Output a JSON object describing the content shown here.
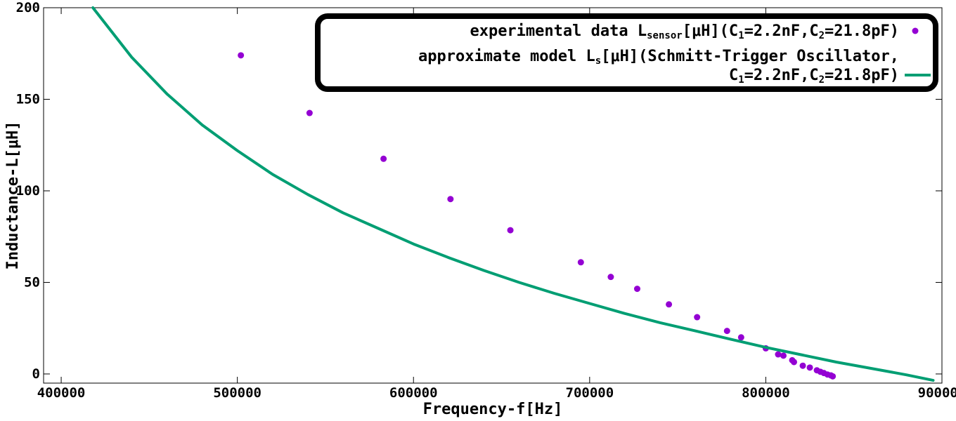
{
  "chart_data": {
    "type": "scatter",
    "xlabel": "Frequency-f[Hz]",
    "ylabel": "Inductance-L[μH]",
    "xlim": [
      390000,
      900000
    ],
    "ylim": [
      -5,
      200
    ],
    "x_ticks": [
      {
        "value": 400000,
        "label": "400000"
      },
      {
        "value": 500000,
        "label": "500000"
      },
      {
        "value": 600000,
        "label": "600000"
      },
      {
        "value": 700000,
        "label": "700000"
      },
      {
        "value": 800000,
        "label": "800000"
      },
      {
        "value": 900000,
        "label": "900000"
      }
    ],
    "y_ticks": [
      {
        "value": 0,
        "label": "0"
      },
      {
        "value": 50,
        "label": "50"
      },
      {
        "value": 100,
        "label": "100"
      },
      {
        "value": 150,
        "label": "150"
      },
      {
        "value": 200,
        "label": "200"
      }
    ],
    "legend_position": "top-right",
    "legend_border": true,
    "series": [
      {
        "kind": "points",
        "color": "#9400d3",
        "legend": {
          "lines": [
            [
              {
                "text": "experimental data L"
              },
              {
                "text": "sensor",
                "sub": true
              },
              {
                "text": "[μH](C"
              },
              {
                "text": "1",
                "sub": true
              },
              {
                "text": "=2.2nF,C"
              },
              {
                "text": "2",
                "sub": true
              },
              {
                "text": "=21.8pF)"
              }
            ]
          ]
        },
        "x": [
          502000,
          541000,
          583000,
          621000,
          655000,
          695000,
          712000,
          727000,
          745000,
          761000,
          778000,
          786000,
          800000,
          807000,
          810000,
          815000,
          816000,
          821000,
          825000,
          829000,
          831000,
          833000,
          835000,
          837000,
          838000
        ],
        "y": [
          174,
          142.5,
          117.5,
          95.5,
          78.5,
          61,
          53,
          46.5,
          38,
          31,
          23.5,
          20,
          14,
          10.7,
          10,
          7.5,
          6.5,
          4.5,
          3.5,
          2,
          1.2,
          0.5,
          -0.3,
          -0.8,
          -1.3
        ]
      },
      {
        "kind": "line",
        "color": "#009e73",
        "legend": {
          "lines": [
            [
              {
                "text": "approximate model L"
              },
              {
                "text": "s",
                "sub": true
              },
              {
                "text": "[μH](Schmitt-Trigger Oscillator,"
              }
            ],
            [
              {
                "text": "C"
              },
              {
                "text": "1",
                "sub": true
              },
              {
                "text": "=2.2nF,C"
              },
              {
                "text": "2",
                "sub": true
              },
              {
                "text": "=21.8pF)"
              }
            ]
          ]
        },
        "x": [
          418000,
          440000,
          460000,
          480000,
          500000,
          520000,
          540000,
          560000,
          580000,
          600000,
          620000,
          640000,
          660000,
          680000,
          700000,
          720000,
          740000,
          760000,
          780000,
          800000,
          820000,
          840000,
          860000,
          880000,
          895000
        ],
        "y": [
          200,
          173,
          153,
          136,
          122,
          109,
          98,
          88,
          79.5,
          71,
          63.5,
          56.5,
          50,
          44,
          38.5,
          33,
          28,
          23.5,
          19,
          14.5,
          10.5,
          6.5,
          3,
          -0.5,
          -3.5
        ]
      }
    ]
  }
}
